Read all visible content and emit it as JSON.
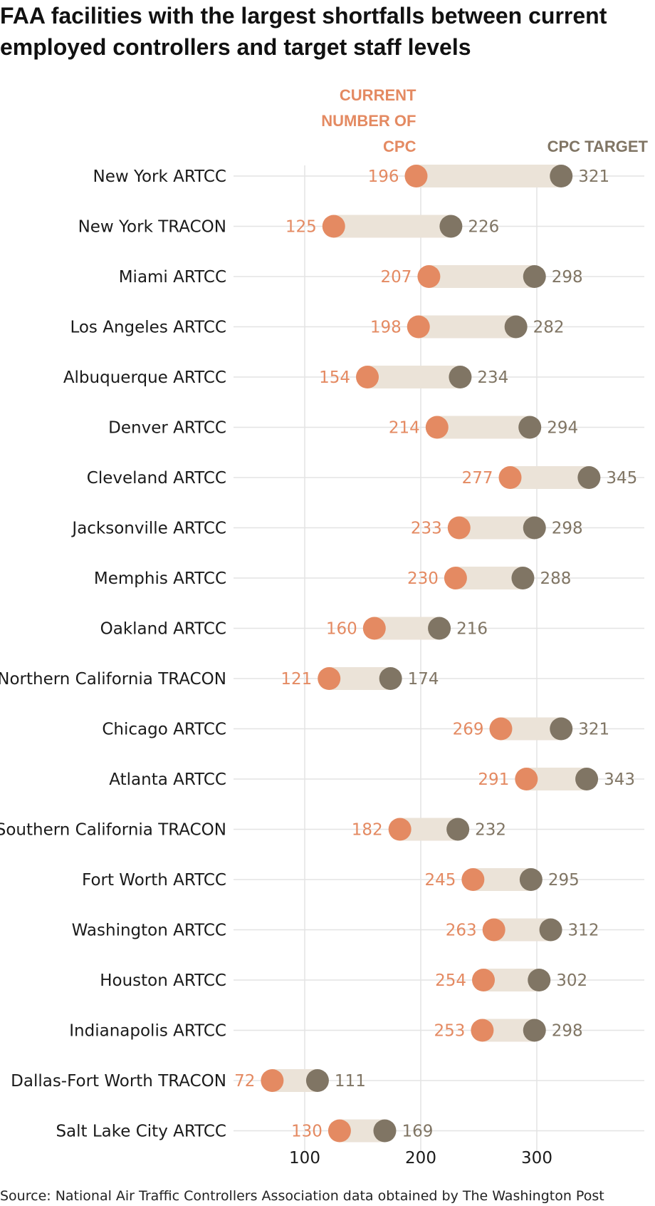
{
  "title": "FAA facilities with the largest shortfalls between current employed controllers and target staff levels",
  "source": "Source: National Air Traffic Controllers Association data obtained by The Washington Post",
  "colors": {
    "current": "#e48a62",
    "target": "#807564",
    "bar": "#ebe3d8",
    "grid": "#e3e3e3",
    "text": "#1a1a1a"
  },
  "chart_data": {
    "type": "dumbbell",
    "title": "FAA facilities with the largest shortfalls between current employed controllers and target staff levels",
    "legend": {
      "current": [
        "CURRENT",
        "NUMBER OF",
        "CPC"
      ],
      "target": "CPC TARGET"
    },
    "xlim": [
      35,
      395
    ],
    "xticks": [
      100,
      200,
      300
    ],
    "categories": [
      "New York ARTCC",
      "New York TRACON",
      "Miami ARTCC",
      "Los Angeles ARTCC",
      "Albuquerque ARTCC",
      "Denver ARTCC",
      "Cleveland ARTCC",
      "Jacksonville ARTCC",
      "Memphis ARTCC",
      "Oakland ARTCC",
      "Northern California TRACON",
      "Chicago ARTCC",
      "Atlanta ARTCC",
      "Southern California TRACON",
      "Fort Worth ARTCC",
      "Washington ARTCC",
      "Houston ARTCC",
      "Indianapolis ARTCC",
      "Dallas-Fort Worth TRACON",
      "Salt Lake City ARTCC"
    ],
    "series": [
      {
        "name": "Current number of CPC",
        "values": [
          196,
          125,
          207,
          198,
          154,
          214,
          277,
          233,
          230,
          160,
          121,
          269,
          291,
          182,
          245,
          263,
          254,
          253,
          72,
          130
        ]
      },
      {
        "name": "CPC target",
        "values": [
          321,
          226,
          298,
          282,
          234,
          294,
          345,
          298,
          288,
          216,
          174,
          321,
          343,
          232,
          295,
          312,
          302,
          298,
          111,
          169
        ]
      }
    ]
  }
}
